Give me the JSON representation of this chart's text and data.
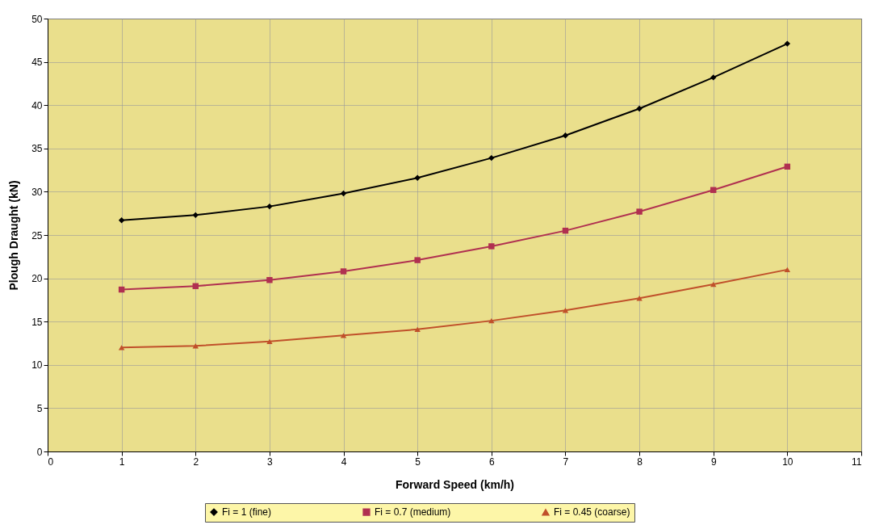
{
  "chart_data": {
    "type": "line",
    "xlabel": "Forward Speed (km/h)",
    "ylabel": "Plough Draught (kN)",
    "x": [
      1,
      2,
      3,
      4,
      5,
      6,
      7,
      8,
      9,
      10
    ],
    "series": [
      {
        "name": "Fi = 1 (fine)",
        "color": "#000000",
        "marker": "diamond",
        "values": [
          26.7,
          27.3,
          28.3,
          29.8,
          31.6,
          33.9,
          36.5,
          39.6,
          43.2,
          47.1
        ]
      },
      {
        "name": "Fi = 0.7 (medium)",
        "color": "#b03050",
        "marker": "square",
        "values": [
          18.7,
          19.1,
          19.8,
          20.8,
          22.1,
          23.7,
          25.5,
          27.7,
          30.2,
          32.9
        ]
      },
      {
        "name": "Fi = 0.45 (coarse)",
        "color": "#c0502a",
        "marker": "triangle",
        "values": [
          12.0,
          12.2,
          12.7,
          13.4,
          14.1,
          15.1,
          16.3,
          17.7,
          19.3,
          21.0
        ]
      }
    ],
    "xlim": [
      0,
      11
    ],
    "xticks": [
      0,
      1,
      2,
      3,
      4,
      5,
      6,
      7,
      8,
      9,
      10,
      11
    ],
    "ylim": [
      0,
      50
    ],
    "yticks": [
      0,
      5,
      10,
      15,
      20,
      25,
      30,
      35,
      40,
      45,
      50
    ],
    "grid": true,
    "legend": "bottom",
    "line_style": "solid"
  }
}
